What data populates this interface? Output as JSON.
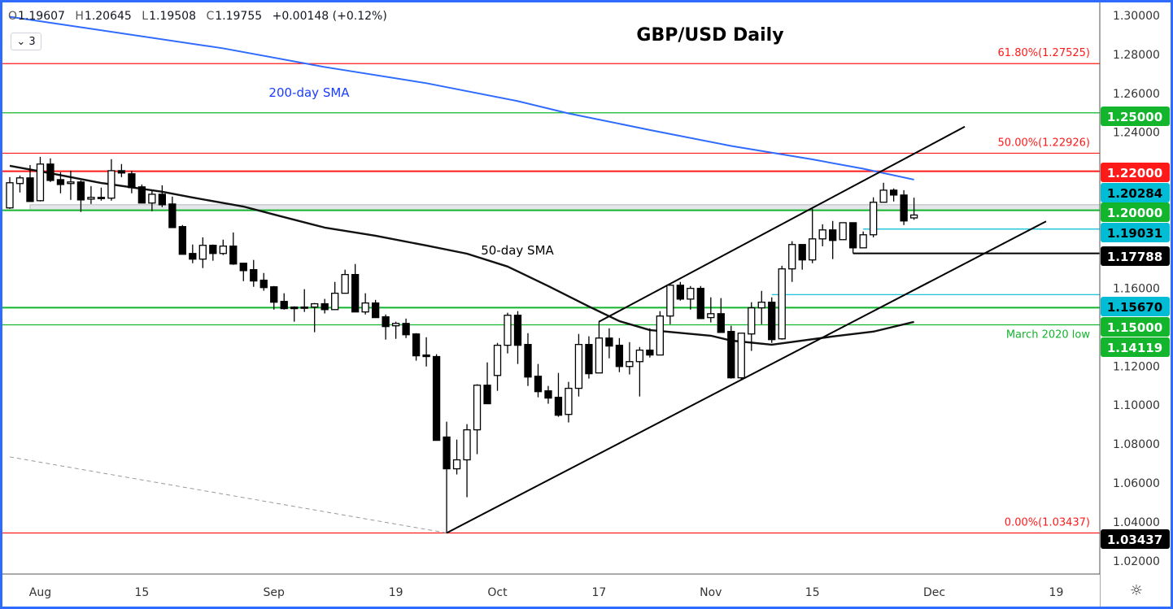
{
  "legend": {
    "open_key": "O",
    "open": "1.19607",
    "high_key": "H",
    "high": "1.20645",
    "low_key": "L",
    "low": "1.19508",
    "close_key": "C",
    "close": "1.19755",
    "change": "+0.00148 (+0.12%)",
    "indicators_count": "3"
  },
  "settings_icon": "gear-icon",
  "chart_data": {
    "type": "candlestick",
    "title": "GBP/USD Daily",
    "ylim": [
      1.0137,
      1.3079
    ],
    "colors": {
      "up_body": "#ffffff",
      "down_body": "#000000",
      "sma200": "#2f6bff",
      "sma50": "#111111",
      "green": "#12b52c",
      "red": "#ff1a1a",
      "cyan": "#00bcd4",
      "band": "#e4e6e9"
    },
    "candles_columns": [
      "date",
      "open",
      "high",
      "low",
      "close"
    ],
    "candles": [
      [
        "2022-07-27",
        1.2012,
        1.217,
        1.2007,
        1.2141
      ],
      [
        "2022-07-28",
        1.2137,
        1.2178,
        1.2091,
        1.2166
      ],
      [
        "2022-07-29",
        1.2166,
        1.2232,
        1.2045,
        1.2045
      ],
      [
        "2022-08-01",
        1.2049,
        1.2274,
        1.2045,
        1.2237
      ],
      [
        "2022-08-02",
        1.2237,
        1.2266,
        1.2145,
        1.2153
      ],
      [
        "2022-08-03",
        1.2157,
        1.2195,
        1.2087,
        1.2132
      ],
      [
        "2022-08-04",
        1.2137,
        1.2203,
        1.2053,
        1.2145
      ],
      [
        "2022-08-05",
        1.2145,
        1.2153,
        1.1991,
        1.2053
      ],
      [
        "2022-08-08",
        1.2057,
        1.2124,
        1.2032,
        1.2066
      ],
      [
        "2022-08-09",
        1.2066,
        1.2116,
        1.2049,
        1.2062
      ],
      [
        "2022-08-10",
        1.2062,
        1.2262,
        1.2049,
        1.2203
      ],
      [
        "2022-08-11",
        1.2203,
        1.2237,
        1.217,
        1.2191
      ],
      [
        "2022-08-12",
        1.2187,
        1.2203,
        1.2087,
        1.2116
      ],
      [
        "2022-08-15",
        1.212,
        1.2132,
        1.2037,
        1.2037
      ],
      [
        "2022-08-16",
        1.2037,
        1.2099,
        1.1995,
        1.2082
      ],
      [
        "2022-08-17",
        1.2082,
        1.2128,
        1.2016,
        1.2028
      ],
      [
        "2022-08-18",
        1.2032,
        1.207,
        1.1911,
        1.1911
      ],
      [
        "2022-08-19",
        1.1916,
        1.1924,
        1.1774,
        1.1774
      ],
      [
        "2022-08-22",
        1.1778,
        1.1824,
        1.1728,
        1.1749
      ],
      [
        "2022-08-23",
        1.1749,
        1.1861,
        1.1703,
        1.182
      ],
      [
        "2022-08-24",
        1.182,
        1.1824,
        1.1741,
        1.1778
      ],
      [
        "2022-08-25",
        1.1778,
        1.1849,
        1.177,
        1.1816
      ],
      [
        "2022-08-26",
        1.1816,
        1.1886,
        1.172,
        1.1724
      ],
      [
        "2022-08-29",
        1.1728,
        1.1728,
        1.1636,
        1.169
      ],
      [
        "2022-08-30",
        1.1695,
        1.1745,
        1.1607,
        1.1637
      ],
      [
        "2022-08-31",
        1.1641,
        1.1678,
        1.1587,
        1.1603
      ],
      [
        "2022-09-01",
        1.1607,
        1.1611,
        1.149,
        1.1528
      ],
      [
        "2022-09-02",
        1.1532,
        1.1574,
        1.149,
        1.1495
      ],
      [
        "2022-09-05",
        1.1503,
        1.1507,
        1.1428,
        1.1495
      ],
      [
        "2022-09-06",
        1.1503,
        1.1595,
        1.1478,
        1.1501
      ],
      [
        "2022-09-07",
        1.1503,
        1.1524,
        1.1374,
        1.152
      ],
      [
        "2022-09-08",
        1.152,
        1.1545,
        1.147,
        1.149
      ],
      [
        "2022-09-09",
        1.149,
        1.1632,
        1.149,
        1.1574
      ],
      [
        "2022-09-12",
        1.1574,
        1.1695,
        1.1574,
        1.167
      ],
      [
        "2022-09-13",
        1.167,
        1.1724,
        1.1478,
        1.1478
      ],
      [
        "2022-09-14",
        1.1478,
        1.1574,
        1.1465,
        1.1524
      ],
      [
        "2022-09-15",
        1.1524,
        1.154,
        1.1449,
        1.1449
      ],
      [
        "2022-09-16",
        1.1453,
        1.1465,
        1.1336,
        1.1403
      ],
      [
        "2022-09-19",
        1.1407,
        1.1428,
        1.134,
        1.1419
      ],
      [
        "2022-09-20",
        1.1419,
        1.1444,
        1.1344,
        1.1361
      ],
      [
        "2022-09-21",
        1.1365,
        1.1369,
        1.1228,
        1.1253
      ],
      [
        "2022-09-22",
        1.1257,
        1.1348,
        1.1198,
        1.1249
      ],
      [
        "2022-09-23",
        1.1249,
        1.1261,
        1.0819,
        1.0819
      ],
      [
        "2022-09-26",
        1.0836,
        1.0915,
        1.03437,
        1.0673
      ],
      [
        "2022-09-27",
        1.0673,
        1.0823,
        1.0644,
        1.0719
      ],
      [
        "2022-09-28",
        1.0719,
        1.0902,
        1.0527,
        1.0873
      ],
      [
        "2022-09-29",
        1.0873,
        1.1107,
        1.0748,
        1.1102
      ],
      [
        "2022-09-30",
        1.1102,
        1.1219,
        1.1007,
        1.1007
      ],
      [
        "2022-10-03",
        1.1152,
        1.1319,
        1.1073,
        1.1307
      ],
      [
        "2022-10-04",
        1.1307,
        1.1474,
        1.1265,
        1.1461
      ],
      [
        "2022-10-05",
        1.1461,
        1.1482,
        1.1211,
        1.1307
      ],
      [
        "2022-10-06",
        1.1311,
        1.1369,
        1.1098,
        1.1144
      ],
      [
        "2022-10-07",
        1.1148,
        1.1211,
        1.104,
        1.1069
      ],
      [
        "2022-10-10",
        1.1073,
        1.1098,
        1.1007,
        1.1036
      ],
      [
        "2022-10-11",
        1.104,
        1.1165,
        1.094,
        1.0948
      ],
      [
        "2022-10-12",
        1.0952,
        1.1119,
        1.0911,
        1.1086
      ],
      [
        "2022-10-13",
        1.1086,
        1.1365,
        1.1044,
        1.1311
      ],
      [
        "2022-10-14",
        1.1311,
        1.1353,
        1.1136,
        1.1161
      ],
      [
        "2022-10-17",
        1.1165,
        1.1432,
        1.1165,
        1.1344
      ],
      [
        "2022-10-18",
        1.1344,
        1.1394,
        1.124,
        1.1303
      ],
      [
        "2022-10-19",
        1.1307,
        1.1344,
        1.1169,
        1.1198
      ],
      [
        "2022-10-20",
        1.1198,
        1.1323,
        1.1157,
        1.1223
      ],
      [
        "2022-10-21",
        1.1223,
        1.1298,
        1.1044,
        1.1282
      ],
      [
        "2022-10-24",
        1.1282,
        1.1394,
        1.1244,
        1.1257
      ],
      [
        "2022-10-25",
        1.1257,
        1.1482,
        1.1257,
        1.1457
      ],
      [
        "2022-10-26",
        1.1457,
        1.1615,
        1.1415,
        1.1615
      ],
      [
        "2022-10-27",
        1.1615,
        1.1632,
        1.1536,
        1.1544
      ],
      [
        "2022-10-28",
        1.1544,
        1.1611,
        1.149,
        1.1599
      ],
      [
        "2022-10-31",
        1.1599,
        1.1611,
        1.1444,
        1.1444
      ],
      [
        "2022-11-01",
        1.1449,
        1.1553,
        1.1424,
        1.1469
      ],
      [
        "2022-11-02",
        1.1469,
        1.1549,
        1.1373,
        1.1373
      ],
      [
        "2022-11-03",
        1.1378,
        1.1407,
        1.1136,
        1.114
      ],
      [
        "2022-11-04",
        1.114,
        1.1369,
        1.1132,
        1.1369
      ],
      [
        "2022-11-07",
        1.1365,
        1.1528,
        1.1278,
        1.1499
      ],
      [
        "2022-11-08",
        1.1499,
        1.1586,
        1.1415,
        1.1528
      ],
      [
        "2022-11-09",
        1.1528,
        1.1553,
        1.1319,
        1.1336
      ],
      [
        "2022-11-10",
        1.134,
        1.1715,
        1.1336,
        1.1699
      ],
      [
        "2022-11-11",
        1.1699,
        1.1841,
        1.1632,
        1.1824
      ],
      [
        "2022-11-14",
        1.1824,
        1.1824,
        1.1695,
        1.1745
      ],
      [
        "2022-11-15",
        1.1745,
        1.2007,
        1.1728,
        1.1853
      ],
      [
        "2022-11-16",
        1.1853,
        1.1928,
        1.1815,
        1.1899
      ],
      [
        "2022-11-17",
        1.1899,
        1.1945,
        1.1749,
        1.1845
      ],
      [
        "2022-11-18",
        1.1849,
        1.1936,
        1.1849,
        1.1936
      ],
      [
        "2022-11-21",
        1.1936,
        1.1936,
        1.17788,
        1.1807
      ],
      [
        "2022-11-22",
        1.1807,
        1.1891,
        1.1807,
        1.1874
      ],
      [
        "2022-11-23",
        1.1874,
        1.2066,
        1.1861,
        1.2041
      ],
      [
        "2022-11-24",
        1.2041,
        1.2141,
        1.2041,
        1.2103
      ],
      [
        "2022-11-25",
        1.2103,
        1.2112,
        1.2045,
        1.2078
      ],
      [
        "2022-11-28",
        1.2078,
        1.2103,
        1.1924,
        1.1945
      ],
      [
        "2022-11-29",
        1.19607,
        1.20645,
        1.19508,
        1.19755
      ]
    ],
    "sma200": {
      "label": "200-day SMA",
      "points": [
        [
          "2022-07-27",
          1.2993
        ],
        [
          "2022-08-25",
          1.2831
        ],
        [
          "2022-09-08",
          1.2735
        ],
        [
          "2022-09-22",
          1.2652
        ],
        [
          "2022-10-05",
          1.256
        ],
        [
          "2022-10-12",
          1.2497
        ],
        [
          "2022-10-24",
          1.2412
        ],
        [
          "2022-11-03",
          1.233
        ],
        [
          "2022-11-15",
          1.2261
        ],
        [
          "2022-11-22",
          1.2213
        ],
        [
          "2022-11-29",
          1.2157
        ]
      ]
    },
    "sma50": {
      "label": "50-day SMA",
      "points": [
        [
          "2022-07-27",
          1.2228
        ],
        [
          "2022-08-02",
          1.219
        ],
        [
          "2022-08-09",
          1.214
        ],
        [
          "2022-08-17",
          1.2095
        ],
        [
          "2022-08-22",
          1.2065
        ],
        [
          "2022-08-29",
          1.2019
        ],
        [
          "2022-09-01",
          1.1978
        ],
        [
          "2022-09-08",
          1.1911
        ],
        [
          "2022-09-15",
          1.1869
        ],
        [
          "2022-09-22",
          1.1819
        ],
        [
          "2022-09-28",
          1.1777
        ],
        [
          "2022-10-04",
          1.1711
        ],
        [
          "2022-10-10",
          1.1611
        ],
        [
          "2022-10-14",
          1.1506
        ],
        [
          "2022-10-19",
          1.1431
        ],
        [
          "2022-10-24",
          1.1385
        ],
        [
          "2022-11-01",
          1.1356
        ],
        [
          "2022-11-03",
          1.1331
        ],
        [
          "2022-11-09",
          1.131
        ],
        [
          "2022-11-17",
          1.1352
        ],
        [
          "2022-11-23",
          1.1377
        ],
        [
          "2022-11-29",
          1.1427
        ]
      ]
    },
    "trendlines": [
      {
        "name": "channel-upper",
        "from": [
          "2022-10-17",
          1.1428
        ],
        "to": [
          "2022-12-06",
          1.2429
        ],
        "style": "solid"
      },
      {
        "name": "channel-lower",
        "from": [
          "2022-09-26",
          1.03437
        ],
        "to": [
          "2022-12-16",
          1.1943
        ],
        "style": "solid"
      },
      {
        "name": "fib-base",
        "from": [
          "2022-07-27",
          1.0734
        ],
        "to": [
          "2022-09-26",
          1.03437
        ],
        "style": "dashed"
      }
    ],
    "band": {
      "top": 1.20284,
      "bottom": 1.2,
      "from": "2022-07-29"
    },
    "levels": [
      {
        "price": 1.27525,
        "color": "red",
        "weight": "thin",
        "fib_label": "61.80%(1.27525)"
      },
      {
        "price": 1.25,
        "color": "green",
        "weight": "thin",
        "badge": "1.25000"
      },
      {
        "price": 1.22926,
        "color": "red",
        "weight": "thin",
        "fib_label": "50.00%(1.22926)"
      },
      {
        "price": 1.22,
        "color": "red",
        "weight": "thick",
        "badge": "1.22000"
      },
      {
        "price": 1.20284,
        "color": "cyan",
        "weight": "none",
        "badge": "1.20284"
      },
      {
        "price": 1.2,
        "color": "green",
        "weight": "thick",
        "badge": "1.20000"
      },
      {
        "price": 1.19031,
        "color": "cyan",
        "weight": "thin",
        "from": "2022-11-22",
        "badge": "1.19031"
      },
      {
        "price": 1.17788,
        "color": "black",
        "weight": "thick",
        "from": "2022-11-21",
        "badge": "1.17788"
      },
      {
        "price": 1.1567,
        "color": "cyan",
        "weight": "thin",
        "from": "2022-11-09",
        "badge": "1.15670"
      },
      {
        "price": 1.15,
        "color": "green",
        "weight": "thick",
        "badge": "1.15000"
      },
      {
        "price": 1.14119,
        "color": "green",
        "weight": "thin",
        "badge": "1.14119",
        "note": "March 2020 low"
      },
      {
        "price": 1.03437,
        "color": "red",
        "weight": "thin",
        "fib_label": "0.00%(1.03437)",
        "badge": "1.03437",
        "badge_color": "black"
      }
    ],
    "y_ticks": [
      "1.30000",
      "1.28000",
      "1.26000",
      "1.24000",
      "1.16000",
      "1.12000",
      "1.10000",
      "1.08000",
      "1.06000",
      "1.04000",
      "1.02000"
    ],
    "x_ticks": [
      {
        "label": "Aug",
        "date": "2022-08-01"
      },
      {
        "label": "15",
        "date": "2022-08-15"
      },
      {
        "label": "Sep",
        "date": "2022-09-01"
      },
      {
        "label": "19",
        "date": "2022-09-19"
      },
      {
        "label": "Oct",
        "date": "2022-10-03"
      },
      {
        "label": "17",
        "date": "2022-10-17"
      },
      {
        "label": "Nov",
        "date": "2022-11-01"
      },
      {
        "label": "15",
        "date": "2022-11-15"
      },
      {
        "label": "Dec",
        "date": "2022-12-01"
      },
      {
        "label": "19",
        "date": "2022-12-19"
      }
    ]
  }
}
